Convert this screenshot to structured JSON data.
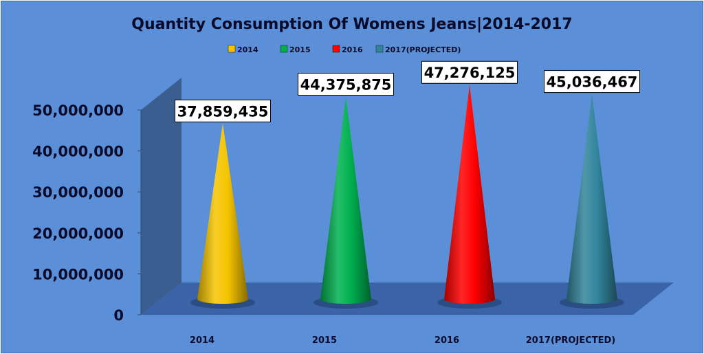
{
  "chart_data": {
    "type": "bar",
    "shape": "cone-3d",
    "title": "Quantity Consumption Of Womens Jeans|2014-2017",
    "categories": [
      "2014",
      "2015",
      "2016",
      "2017(PROJECTED)"
    ],
    "series": [
      {
        "name": "2014",
        "values": [
          37859435,
          null,
          null,
          null
        ]
      },
      {
        "name": "2015",
        "values": [
          null,
          44375875,
          null,
          null
        ]
      },
      {
        "name": "2016",
        "values": [
          null,
          null,
          47276125,
          null
        ]
      },
      {
        "name": "2017(PROJECTED)",
        "values": [
          null,
          null,
          null,
          45036467
        ]
      }
    ],
    "values": [
      37859435,
      44375875,
      47276125,
      45036467
    ],
    "data_labels": [
      "37,859,435",
      "44,375,875",
      "47,276,125",
      "45,036,467"
    ],
    "colors": [
      "#f5c400",
      "#00b050",
      "#ff0000",
      "#31859c"
    ],
    "yticks": [
      "0",
      "10,000,000",
      "20,000,000",
      "30,000,000",
      "40,000,000",
      "50,000,000"
    ],
    "ylim": [
      0,
      50000000
    ],
    "legend_position": "top",
    "grid": false,
    "background": "#5b8fd8",
    "wall_color": "#3a5e8f",
    "floor_color": "#3b64a8"
  }
}
